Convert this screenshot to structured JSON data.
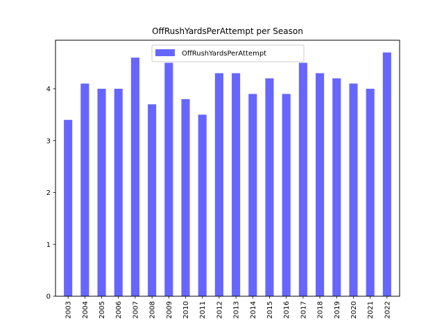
{
  "chart_data": {
    "type": "bar",
    "title": "OffRushYardsPerAttempt per Season",
    "xlabel": "",
    "ylabel": "",
    "categories": [
      "2003",
      "2004",
      "2005",
      "2006",
      "2007",
      "2008",
      "2009",
      "2010",
      "2011",
      "2012",
      "2013",
      "2014",
      "2015",
      "2016",
      "2017",
      "2018",
      "2019",
      "2020",
      "2021",
      "2022"
    ],
    "series": [
      {
        "name": "OffRushYardsPerAttempt",
        "values": [
          3.4,
          4.1,
          4.0,
          4.0,
          4.6,
          3.7,
          4.5,
          3.8,
          3.5,
          4.3,
          4.3,
          3.9,
          4.2,
          3.9,
          4.5,
          4.3,
          4.2,
          4.1,
          4.0,
          4.7
        ],
        "color": "#6666ff"
      }
    ],
    "ylim": [
      0,
      4.935
    ],
    "yticks": [
      0,
      1,
      2,
      3,
      4
    ],
    "grid": false,
    "legend": "upper-center"
  }
}
